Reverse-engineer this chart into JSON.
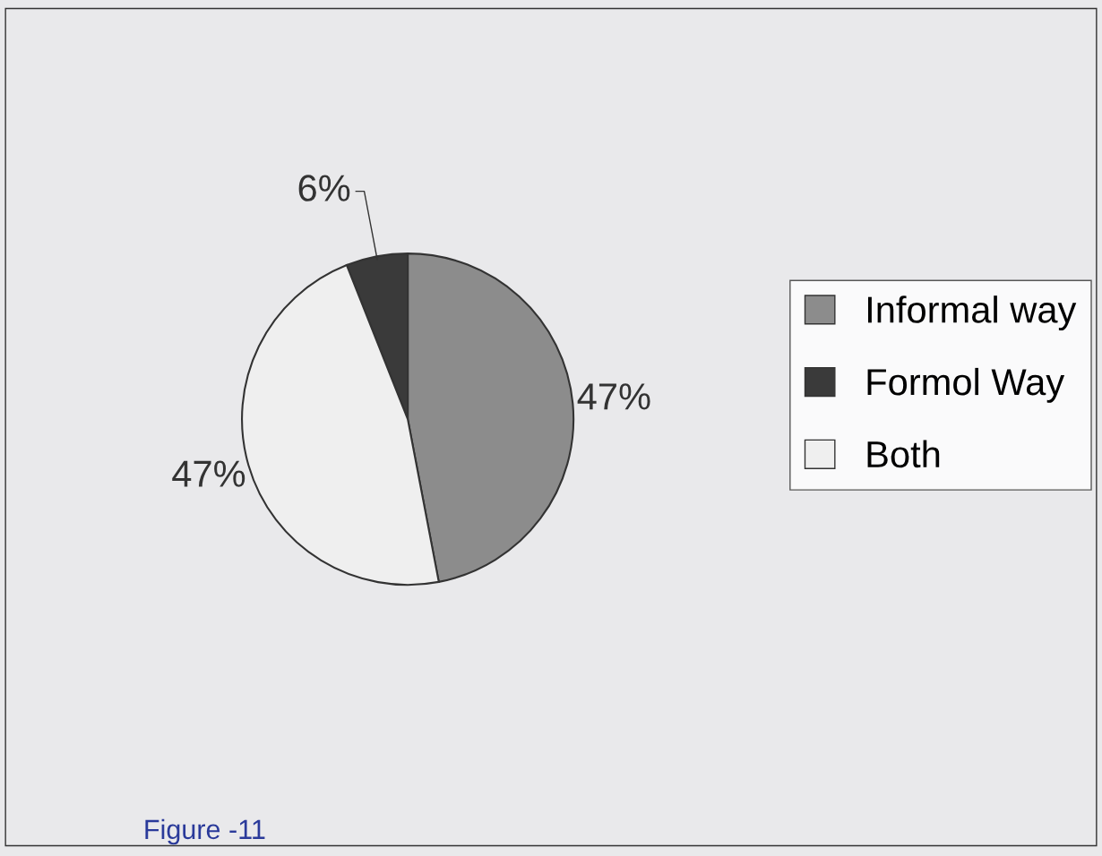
{
  "chart_data": {
    "type": "pie",
    "categories": [
      "Informal way",
      "Formol Way",
      "Both"
    ],
    "values": [
      47,
      6,
      47
    ],
    "colors": [
      "#8c8c8c",
      "#3a3a3a",
      "#efefef"
    ],
    "value_labels": [
      "47%",
      "6%",
      "47%"
    ],
    "legend": "right",
    "annotations": [
      "Figure -11"
    ]
  }
}
